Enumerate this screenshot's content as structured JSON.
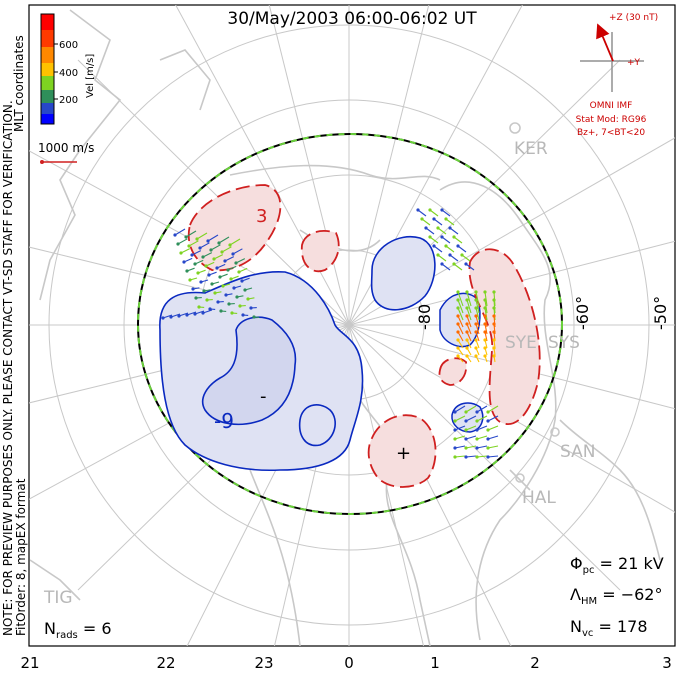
{
  "title": "30/May/2003 06:00-06:02 UT",
  "colorbar": {
    "label": "Vel [m/s]",
    "ticks": [
      "600",
      "400",
      "200"
    ],
    "colors": [
      "#ff0000",
      "#ff6a00",
      "#ffc200",
      "#7ed321",
      "#2f8f5a",
      "#2747c9",
      "#0000ff"
    ]
  },
  "coord_label": "MLT coordinates",
  "velocity_scale": "1000 m/s",
  "imf": {
    "z_label": "+Z (30 nT)",
    "y_label": "+Y",
    "source": "OMNI IMF",
    "stat_model": "Stat Mod: RG96",
    "condition": "Bz+, 7<BT<20"
  },
  "stations": [
    "KER",
    "SYE",
    "SYS",
    "SAN",
    "HAL",
    "TIG"
  ],
  "lat_labels": [
    "-80",
    "-60°",
    "-50°"
  ],
  "contour_labels": [
    "3",
    "-9",
    "-",
    "+"
  ],
  "note": "NOTE: FOR PREVIEW PURPOSES ONLY. PLEASE CONTACT VT-SD STAFF FOR VERIFICATION.",
  "fit": "FitOrder: 8, mapEX format",
  "stats": {
    "phi_sym": "Φ",
    "phi_sub": "pc",
    "phi_val": " = 21 kV",
    "lambda_sym": "Λ",
    "lambda_sub": "HM",
    "lambda_val": " = −62°",
    "nvc_sym": "N",
    "nvc_sub": "vc",
    "nvc_val": " = 178",
    "nrads_sym": "N",
    "nrads_sub": "rads",
    "nrads_val": " = 6"
  },
  "mlt_labels": [
    "21",
    "22",
    "23",
    "0",
    "1",
    "2",
    "3"
  ]
}
